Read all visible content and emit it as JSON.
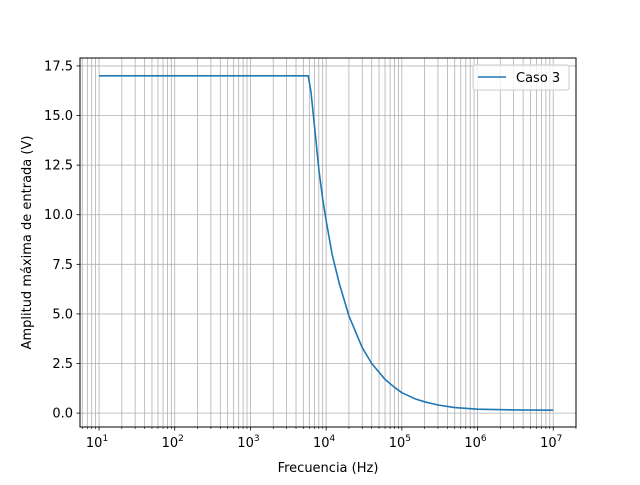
{
  "chart_data": {
    "type": "line",
    "title": "",
    "xlabel": "Frecuencia (Hz)",
    "ylabel": "Amplitud máxima de entrada (V)",
    "xscale": "log",
    "xlim": [
      5.6,
      20000000
    ],
    "ylim": [
      -0.7,
      17.9
    ],
    "grid": "both (major and minor)",
    "legend_position": "upper right",
    "x_ticks": [
      {
        "value": 10,
        "base": "10",
        "exp": "1"
      },
      {
        "value": 100,
        "base": "10",
        "exp": "2"
      },
      {
        "value": 1000,
        "base": "10",
        "exp": "3"
      },
      {
        "value": 10000,
        "base": "10",
        "exp": "4"
      },
      {
        "value": 100000,
        "base": "10",
        "exp": "5"
      },
      {
        "value": 1000000,
        "base": "10",
        "exp": "6"
      },
      {
        "value": 10000000,
        "base": "10",
        "exp": "7"
      }
    ],
    "y_ticks": [
      {
        "value": 0,
        "label": "0.0"
      },
      {
        "value": 2.5,
        "label": "2.5"
      },
      {
        "value": 5,
        "label": "5.0"
      },
      {
        "value": 7.5,
        "label": "7.5"
      },
      {
        "value": 10,
        "label": "10.0"
      },
      {
        "value": 12.5,
        "label": "12.5"
      },
      {
        "value": 15,
        "label": "15.0"
      },
      {
        "value": 17.5,
        "label": "17.5"
      }
    ],
    "series": [
      {
        "name": "Caso 3",
        "color": "#1f77b4",
        "x": [
          10,
          100,
          1000,
          5000,
          5800,
          6300,
          7000,
          8000,
          9000,
          10000,
          12000,
          15000,
          20000,
          30000,
          40000,
          60000,
          80000,
          100000,
          150000,
          200000,
          300000,
          500000,
          1000000,
          3000000,
          10000000
        ],
        "y": [
          17,
          17,
          17,
          17,
          17,
          16.2,
          14.5,
          12.3,
          10.8,
          9.7,
          8.0,
          6.5,
          4.9,
          3.3,
          2.5,
          1.7,
          1.3,
          1.03,
          0.72,
          0.57,
          0.41,
          0.28,
          0.2,
          0.16,
          0.15
        ]
      }
    ]
  }
}
